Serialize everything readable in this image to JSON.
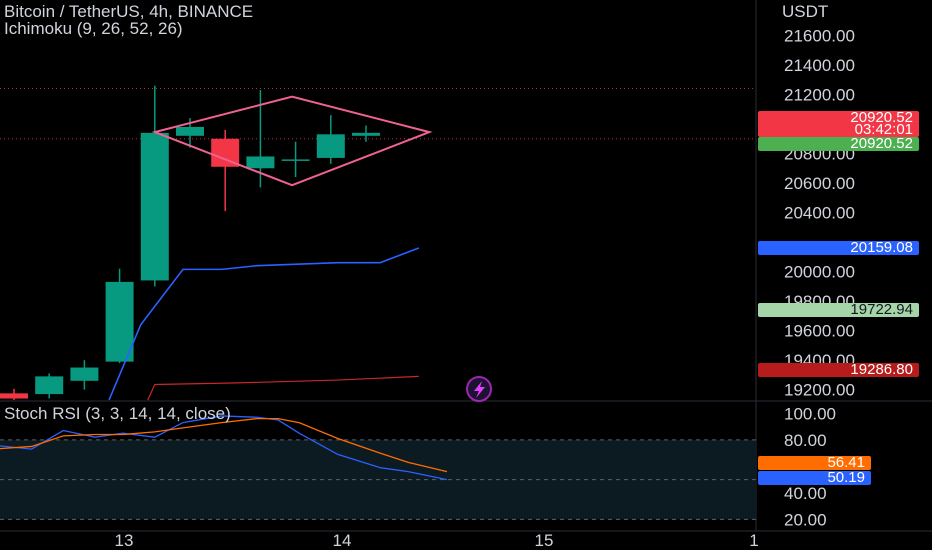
{
  "header": {
    "symbol_title": "Bitcoin / TetherUS, 4h, BINANCE",
    "indicator_main": "Ichimoku (9, 26, 52, 26)",
    "indicator_sub": "Stoch RSI (3, 3, 14, 14, close)",
    "currency": "USDT"
  },
  "price_tags": {
    "last_price": "20920.52",
    "countdown": "03:42:01",
    "last_price_green": "20920.52",
    "blue_line": "20159.08",
    "light_green": "19722.94",
    "red_line": "19286.80",
    "stoch_k": "56.41",
    "stoch_d": "50.19"
  },
  "colors": {
    "up": "#089981",
    "down": "#f23645",
    "blue": "#2962ff",
    "orange": "#ff6d00",
    "pattern": "#f06292",
    "green_tag": "#4caf50",
    "light_green_tag": "#a5d6a7",
    "dark_red": "#b71c1c"
  },
  "chart_data": [
    {
      "type": "candlestick",
      "title": "Bitcoin / TetherUS, 4h, BINANCE",
      "x_ticks": [
        "13",
        "14",
        "15",
        "1"
      ],
      "ylim": [
        19130,
        21840
      ],
      "y_ticks": [
        21600,
        21400,
        21200,
        20800,
        20600,
        20400,
        20000,
        19800,
        19600,
        19400,
        19200
      ],
      "candles": [
        {
          "o": 19175,
          "h": 19205,
          "l": 19130,
          "c": 19140
        },
        {
          "o": 19170,
          "h": 19310,
          "l": 19140,
          "c": 19290
        },
        {
          "o": 19260,
          "h": 19400,
          "l": 19200,
          "c": 19350
        },
        {
          "o": 19390,
          "h": 20020,
          "l": 19380,
          "c": 19930
        },
        {
          "o": 19940,
          "h": 21260,
          "l": 19900,
          "c": 20940
        },
        {
          "o": 20920,
          "h": 21040,
          "l": 20840,
          "c": 20980
        },
        {
          "o": 20900,
          "h": 20960,
          "l": 20410,
          "c": 20710
        },
        {
          "o": 20700,
          "h": 21230,
          "l": 20570,
          "c": 20780
        },
        {
          "o": 20760,
          "h": 20880,
          "l": 20640,
          "c": 20760
        },
        {
          "o": 20770,
          "h": 21060,
          "l": 20730,
          "c": 20930
        },
        {
          "o": 20920,
          "h": 20990,
          "l": 20880,
          "c": 20940
        }
      ],
      "ichimoku_blue": [
        {
          "i": 2.7,
          "v": 19130
        },
        {
          "i": 3.6,
          "v": 19640
        },
        {
          "i": 4.8,
          "v": 20015
        },
        {
          "i": 5.9,
          "v": 20015
        },
        {
          "i": 6.9,
          "v": 20040
        },
        {
          "i": 9.2,
          "v": 20060
        },
        {
          "i": 10.4,
          "v": 20060
        },
        {
          "i": 11.5,
          "v": 20160
        }
      ],
      "ichimoku_red": [
        {
          "i": 3.8,
          "v": 19130
        },
        {
          "i": 4.0,
          "v": 19235
        },
        {
          "i": 6.2,
          "v": 19245
        },
        {
          "i": 9.2,
          "v": 19265
        },
        {
          "i": 11.5,
          "v": 19290
        }
      ],
      "price_lines": [
        21240,
        20900
      ],
      "pattern": "diamond",
      "diamond_points": [
        {
          "i": 4.0,
          "v": 20945
        },
        {
          "i": 7.9,
          "v": 21185
        },
        {
          "i": 11.8,
          "v": 20945
        },
        {
          "i": 7.9,
          "v": 20585
        }
      ]
    },
    {
      "type": "line",
      "title": "Stoch RSI (3, 3, 14, 14, close)",
      "ylim": [
        12,
        104
      ],
      "y_ticks": [
        100,
        80,
        40,
        20
      ],
      "bands": [
        80,
        50,
        20
      ],
      "series": [
        {
          "name": "K",
          "color": "#2962ff",
          "points": [
            [
              -0.6,
              76
            ],
            [
              0.5,
              73
            ],
            [
              1.4,
              87
            ],
            [
              2.3,
              82
            ],
            [
              3.1,
              85
            ],
            [
              4.0,
              82
            ],
            [
              4.8,
              93
            ],
            [
              5.9,
              98
            ],
            [
              6.9,
              97
            ],
            [
              7.5,
              95
            ],
            [
              8.1,
              85
            ],
            [
              9.2,
              69
            ],
            [
              10.4,
              59
            ],
            [
              11.2,
              56
            ],
            [
              12.3,
              50
            ]
          ]
        },
        {
          "name": "D",
          "color": "#ff6d00",
          "points": [
            [
              -0.6,
              73
            ],
            [
              0.5,
              75
            ],
            [
              1.4,
              83
            ],
            [
              2.3,
              84
            ],
            [
              3.1,
              84
            ],
            [
              4.0,
              86
            ],
            [
              4.8,
              89
            ],
            [
              5.9,
              93
            ],
            [
              6.9,
              96
            ],
            [
              7.5,
              96
            ],
            [
              8.1,
              93
            ],
            [
              9.2,
              81
            ],
            [
              10.4,
              70
            ],
            [
              11.2,
              63
            ],
            [
              12.3,
              56
            ]
          ]
        }
      ]
    }
  ]
}
